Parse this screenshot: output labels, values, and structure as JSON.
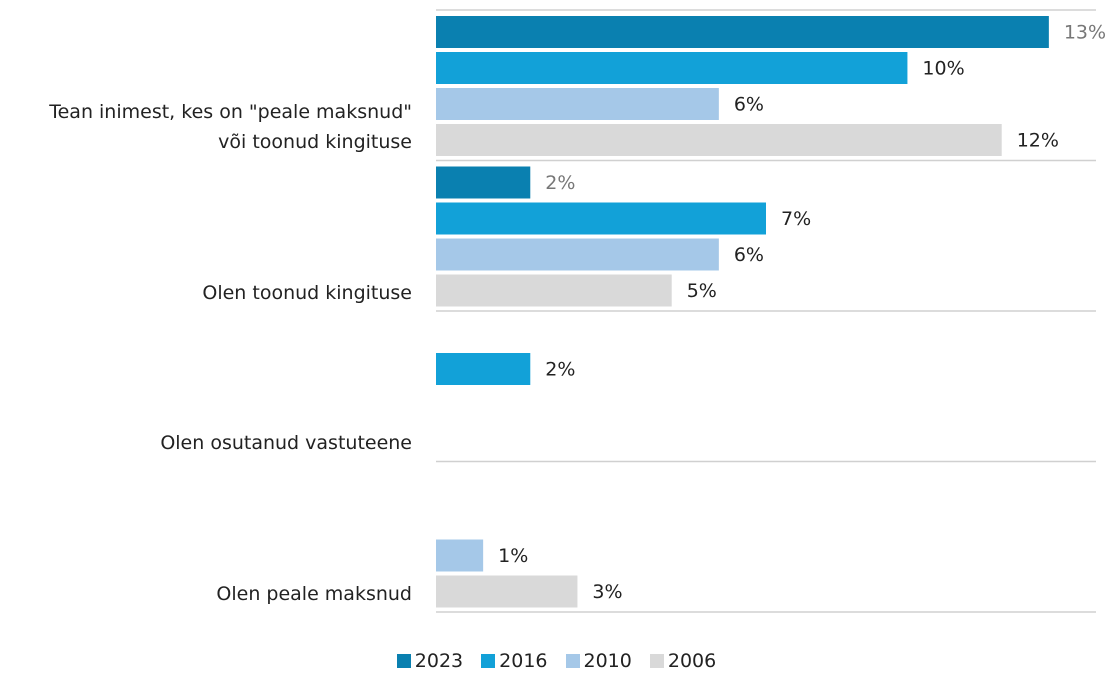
{
  "chart_data": {
    "type": "hbar",
    "categories": [
      "Tean inimest, kes on \"peale maksnud\"\nvõi toonud kingituse",
      "Olen toonud kingituse",
      "Olen osutanud vastuteene",
      "Olen peale maksnud"
    ],
    "series": [
      {
        "name": "2023",
        "color": "#0a80b0",
        "values": [
          13,
          2,
          null,
          null
        ],
        "value_labels": [
          "13%",
          "2%",
          null,
          null
        ]
      },
      {
        "name": "2016",
        "color": "#12a1d8",
        "values": [
          10,
          7,
          2,
          null
        ],
        "value_labels": [
          "10%",
          "7%",
          "2%",
          null
        ]
      },
      {
        "name": "2010",
        "color": "#a5c8e8",
        "values": [
          6,
          6,
          null,
          1
        ],
        "value_labels": [
          "6%",
          "6%",
          null,
          "1%"
        ]
      },
      {
        "name": "2006",
        "color": "#d9d9d9",
        "values": [
          12,
          5,
          null,
          3
        ],
        "value_labels": [
          "12%",
          "5%",
          null,
          "3%"
        ]
      }
    ],
    "xlim": [
      0,
      14
    ],
    "legend": "bottom"
  }
}
